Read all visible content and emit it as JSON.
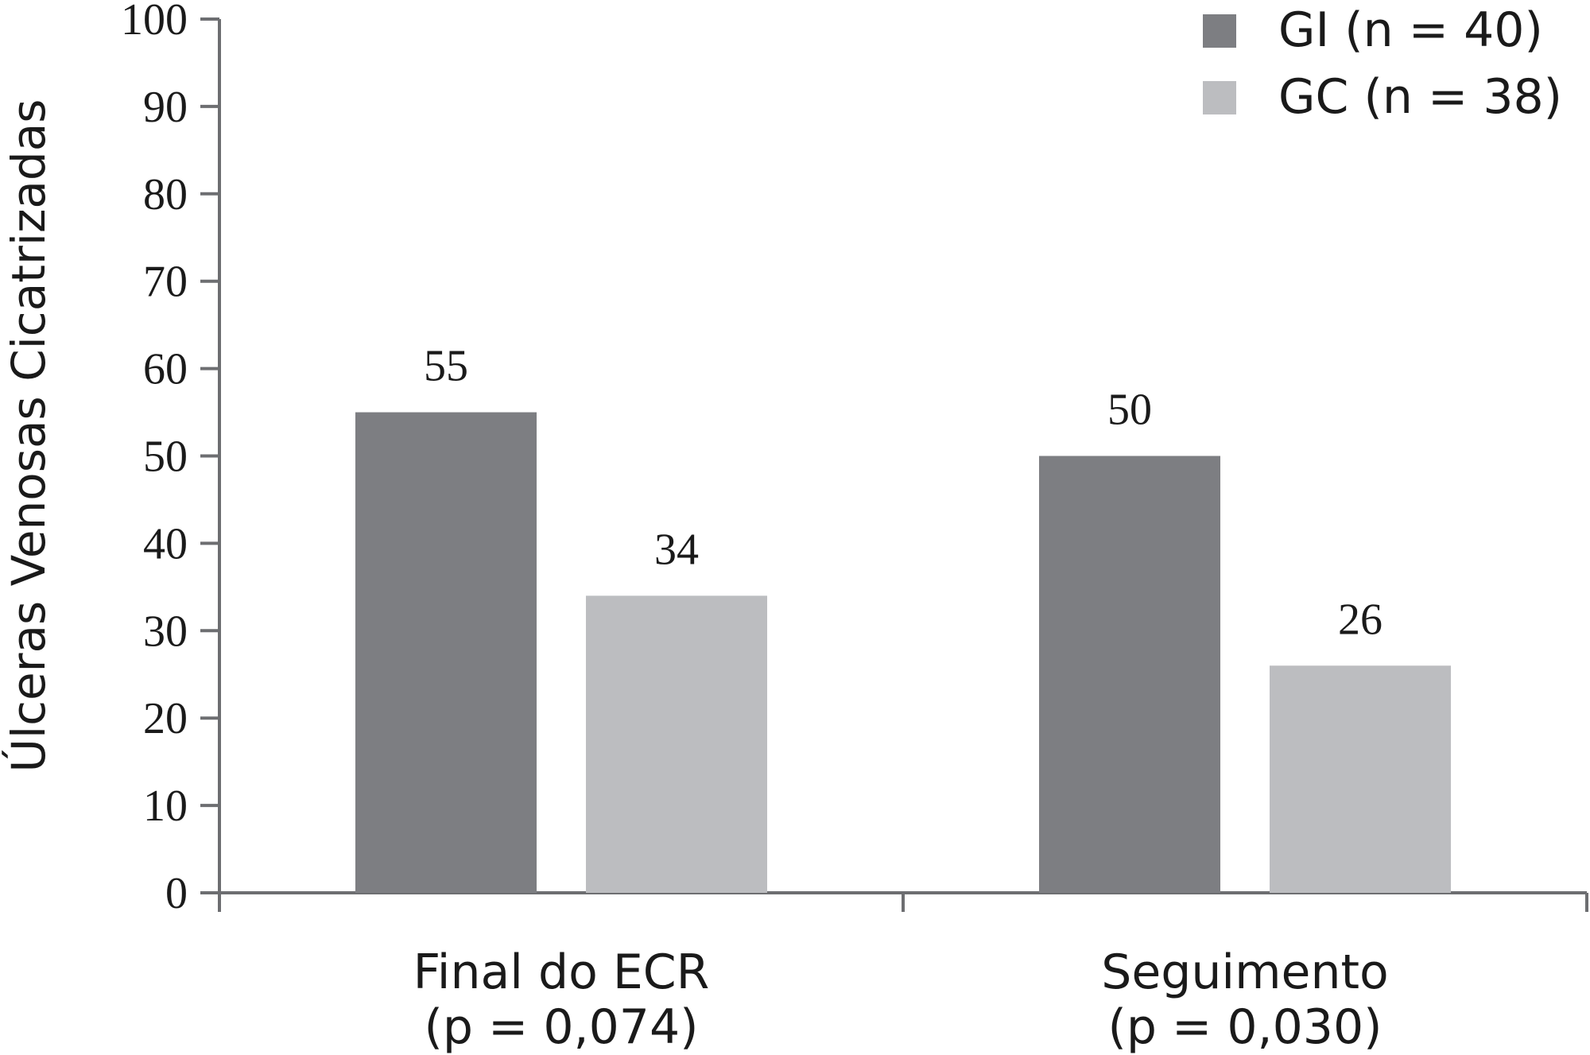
{
  "chart_data": {
    "type": "bar",
    "categories": [
      "Final do ECR",
      "Seguimento"
    ],
    "category_subtitles": [
      "(p = 0,074)",
      "(p = 0,030)"
    ],
    "series": [
      {
        "name": "GI (n = 40)",
        "color": "#7d7e82",
        "values": [
          55,
          50
        ]
      },
      {
        "name": "GC (n = 38)",
        "color": "#bcbdc0",
        "values": [
          34,
          26
        ]
      }
    ],
    "title": "",
    "xlabel": "",
    "ylabel": "Úlceras Venosas Cicatrizadas",
    "ylim": [
      0,
      100
    ],
    "yticks": [
      0,
      10,
      20,
      30,
      40,
      50,
      60,
      70,
      80,
      90,
      100
    ],
    "grid": false,
    "legend_position": "top-right",
    "axis_color": "#6d6e71"
  }
}
